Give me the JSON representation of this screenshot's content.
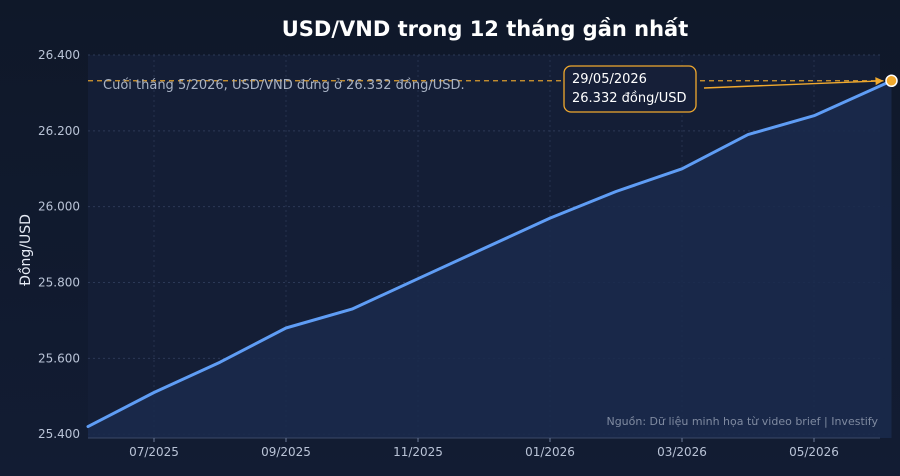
{
  "chart_data": {
    "type": "line",
    "title": "USD/VND trong 12 tháng gần nhất",
    "ylabel": "Đồng/USD",
    "xlabel": "",
    "x_ticks": [
      "07/2025",
      "09/2025",
      "11/2025",
      "01/2026",
      "03/2026",
      "05/2026"
    ],
    "y_ticks": [
      "25.400",
      "25.600",
      "25.800",
      "26.000",
      "26.200",
      "26.400"
    ],
    "y_tick_values": [
      25400,
      25600,
      25800,
      26000,
      26200,
      26400
    ],
    "ylim": [
      25390,
      26400
    ],
    "series": [
      {
        "x": [
          "06/2025",
          "07/2025",
          "08/2025",
          "09/2025",
          "10/2025",
          "11/2025",
          "12/2025",
          "01/2026",
          "02/2026",
          "03/2026",
          "04/2026",
          "05/2026",
          "29/05/2026"
        ],
        "values": [
          25420,
          25510,
          25590,
          25680,
          25730,
          25810,
          25890,
          25970,
          26040,
          26100,
          26190,
          26240,
          26332
        ]
      }
    ],
    "reference_line": {
      "value": 26332
    },
    "note": "Cuối tháng 5/2026, USD/VND đứng ở 26.332 đồng/USD.",
    "callout": {
      "line1": "29/05/2026",
      "line2": "26.332 đồng/USD"
    },
    "source": "Nguồn: Dữ liệu minh họa từ video brief | Investify",
    "grid": true,
    "colors": {
      "background": "#111a2e",
      "plot_background": "#141e36",
      "line": "#5f9df5",
      "area": "#1a2a4c",
      "accent": "#f0a92e"
    }
  }
}
